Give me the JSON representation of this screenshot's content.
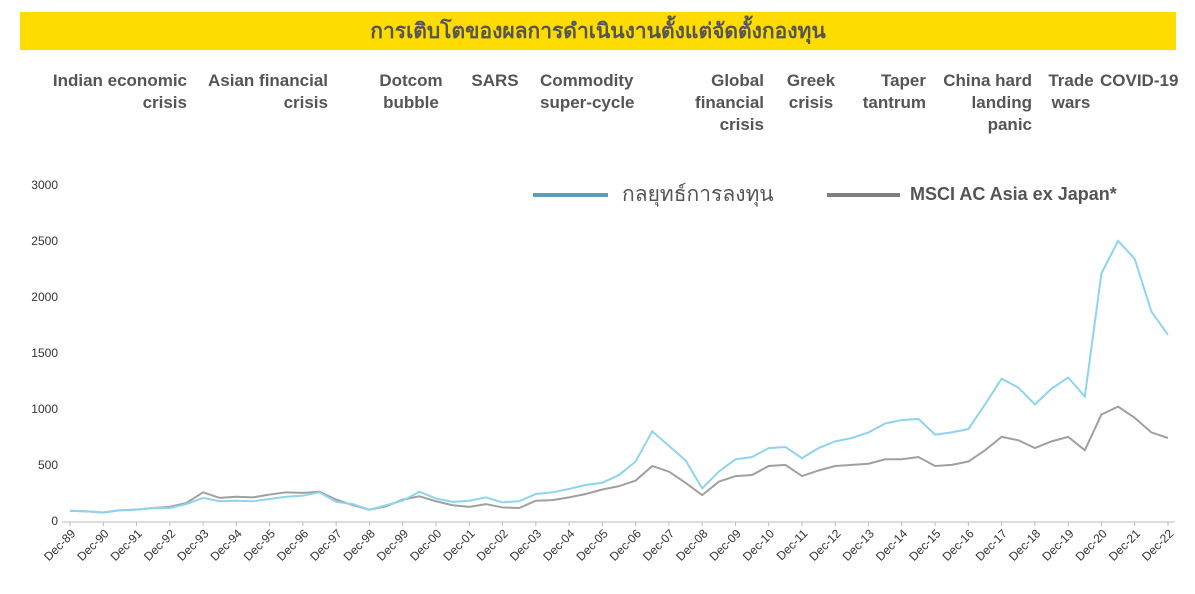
{
  "chart_data": {
    "type": "line",
    "title": "การเติบโตของผลการดำเนินงานตั้งแต่จัดตั้งกองทุน",
    "annotations": [
      "Indian economic crisis",
      "Asian financial crisis",
      "Dotcom bubble",
      "SARS",
      "Commodity super-cycle",
      "Global financial crisis",
      "Greek crisis",
      "Taper tantrum",
      "China hard landing panic",
      "Trade wars",
      "COVID-19"
    ],
    "categories": [
      "Dec-89",
      null,
      "Dec-90",
      null,
      "Dec-91",
      null,
      "Dec-92",
      null,
      "Dec-93",
      null,
      "Dec-94",
      null,
      "Dec-95",
      null,
      "Dec-96",
      null,
      "Dec-97",
      null,
      "Dec-98",
      null,
      "Dec-99",
      null,
      "Dec-00",
      null,
      "Dec-01",
      null,
      "Dec-02",
      null,
      "Dec-03",
      null,
      "Dec-04",
      null,
      "Dec-05",
      null,
      "Dec-06",
      null,
      "Dec-07",
      null,
      "Dec-08",
      null,
      "Dec-09",
      null,
      "Dec-10",
      null,
      "Dec-11",
      null,
      "Dec-12",
      null,
      "Dec-13",
      null,
      "Dec-14",
      null,
      "Dec-15",
      null,
      "Dec-16",
      null,
      "Dec-17",
      null,
      "Dec-18",
      null,
      "Dec-19",
      null,
      "Dec-20",
      null,
      "Dec-21",
      null,
      "Dec-22"
    ],
    "series": [
      {
        "name": "กลยุทธ์การลงทุน",
        "color": "#8fd4ee",
        "legend_color": "#5b9fc2",
        "values": [
          100,
          95,
          85,
          105,
          110,
          125,
          125,
          160,
          215,
          185,
          190,
          185,
          205,
          225,
          235,
          265,
          180,
          160,
          110,
          150,
          190,
          270,
          210,
          180,
          190,
          220,
          175,
          185,
          250,
          265,
          295,
          330,
          350,
          420,
          540,
          810,
          680,
          550,
          300,
          450,
          560,
          580,
          660,
          670,
          570,
          660,
          720,
          750,
          800,
          880,
          910,
          920,
          780,
          800,
          830,
          1050,
          1280,
          1200,
          1050,
          1190,
          1290,
          1120,
          2220,
          2510,
          2350,
          1880,
          1670
        ]
      },
      {
        "name": "MSCI AC Asia ex Japan*",
        "color": "#a0a0a0",
        "legend_color": "#7f7f7f",
        "values": [
          100,
          95,
          85,
          105,
          110,
          125,
          135,
          170,
          265,
          215,
          225,
          220,
          245,
          265,
          260,
          270,
          200,
          150,
          110,
          140,
          200,
          230,
          185,
          150,
          135,
          160,
          130,
          125,
          190,
          195,
          220,
          250,
          290,
          320,
          370,
          500,
          450,
          350,
          240,
          360,
          410,
          420,
          500,
          510,
          410,
          460,
          500,
          510,
          520,
          560,
          560,
          580,
          500,
          510,
          540,
          640,
          760,
          730,
          660,
          720,
          760,
          640,
          960,
          1030,
          930,
          800,
          750
        ]
      }
    ],
    "ylim": [
      0,
      3000
    ],
    "yticks": [
      0,
      500,
      1000,
      1500,
      2000,
      2500,
      3000
    ],
    "grid": false
  }
}
